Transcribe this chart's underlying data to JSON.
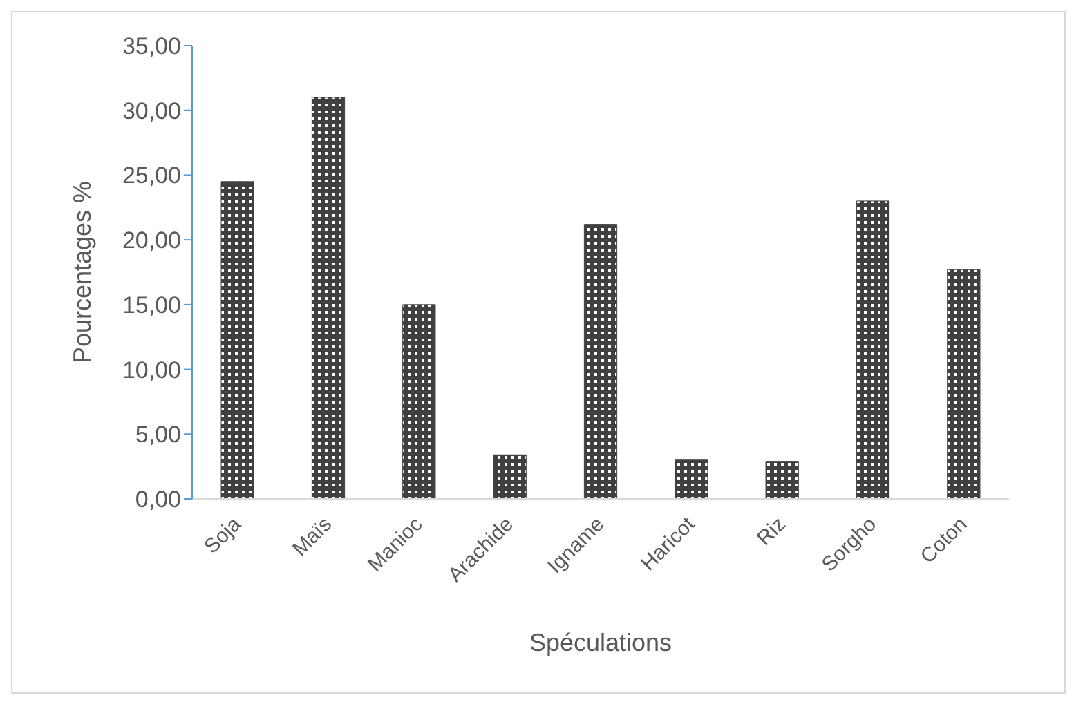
{
  "chart_data": {
    "type": "bar",
    "xlabel": "Spéculations",
    "ylabel": "Pourcentages %",
    "categories": [
      "Soja",
      "Maïs",
      "Manioc",
      "Arachide",
      "Igname",
      "Haricot",
      "Riz",
      "Sorgho",
      "Coton"
    ],
    "values": [
      24.5,
      31.0,
      15.0,
      3.4,
      21.2,
      3.0,
      2.9,
      23.0,
      17.7
    ],
    "color": "#404040",
    "ylim": [
      0,
      35
    ],
    "yticks": [
      {
        "value": 0,
        "label": "0,00"
      },
      {
        "value": 5,
        "label": "5,00"
      },
      {
        "value": 10,
        "label": "10,00"
      },
      {
        "value": 15,
        "label": "15,00"
      },
      {
        "value": 20,
        "label": "20,00"
      },
      {
        "value": 25,
        "label": "25,00"
      },
      {
        "value": 30,
        "label": "30,00"
      },
      {
        "value": 35,
        "label": "35,00"
      }
    ],
    "grid": false
  }
}
